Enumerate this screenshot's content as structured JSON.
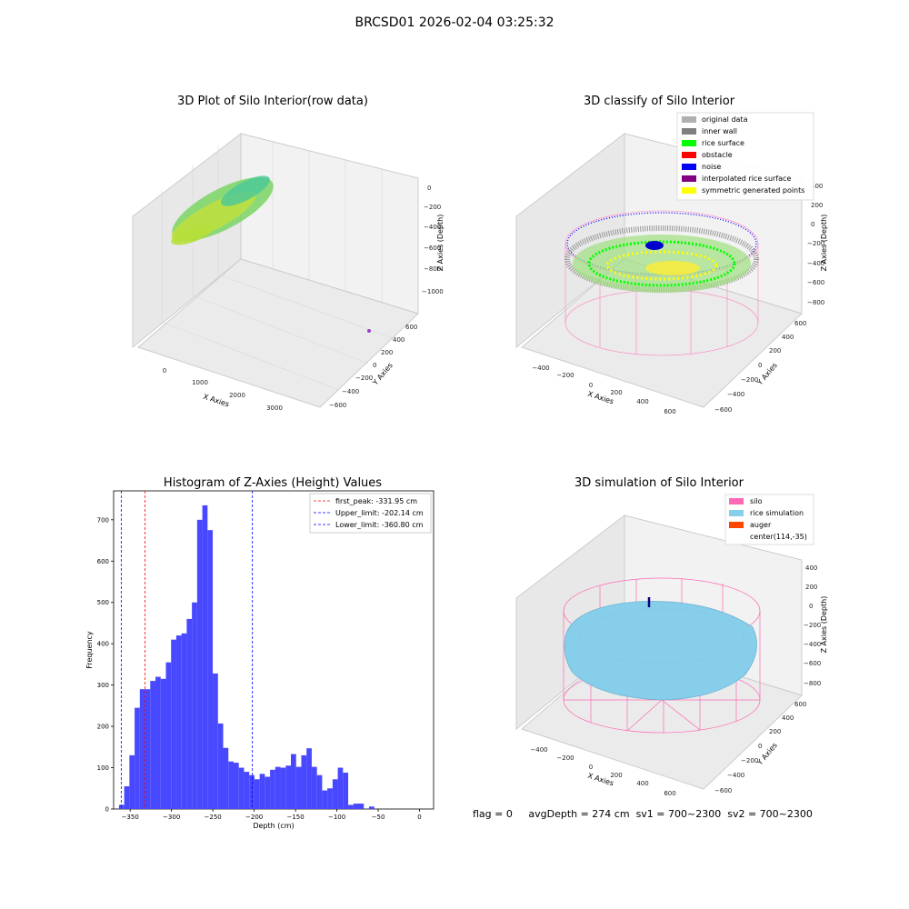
{
  "figure": {
    "suptitle": "BRCSD01 2026-02-04 03:25:32"
  },
  "panels": {
    "p1": {
      "title": "3D Plot of Silo Interior(row data)",
      "xlabel": "X Axies",
      "ylabel": "Y Axies",
      "zlabel": "Z Axies (Depth)",
      "xticks": [
        "0",
        "1000",
        "2000",
        "3000"
      ],
      "yticks": [
        "600",
        "400",
        "200",
        "0",
        "−200",
        "−400",
        "−600"
      ],
      "zticks": [
        "0",
        "−200",
        "−400",
        "−600",
        "−800",
        "−1000"
      ]
    },
    "p2": {
      "title": "3D classify of Silo Interior",
      "xlabel": "X Axies",
      "ylabel": "Y Axies",
      "zlabel": "Z Axies (Depth)",
      "xticks": [
        "−400",
        "−200",
        "0",
        "200",
        "400",
        "600"
      ],
      "yticks": [
        "600",
        "400",
        "200",
        "0",
        "−200",
        "−400",
        "−600"
      ],
      "zticks": [
        "400",
        "200",
        "0",
        "−200",
        "−400",
        "−600",
        "−800"
      ],
      "legend": [
        {
          "label": "original data",
          "color": "#b0b0b0"
        },
        {
          "label": "inner wall",
          "color": "#808080"
        },
        {
          "label": "rice surface",
          "color": "#00ff00"
        },
        {
          "label": "obstacle",
          "color": "#ff0000"
        },
        {
          "label": "noise",
          "color": "#0000ff"
        },
        {
          "label": "interpolated rice surface",
          "color": "#800080"
        },
        {
          "label": "symmetric generated points",
          "color": "#ffff00"
        }
      ]
    },
    "p4": {
      "title": "3D simulation of Silo Interior",
      "xlabel": "X Axies",
      "ylabel": "Y Axies",
      "zlabel": "Z Axies (Depth)",
      "xticks": [
        "−400",
        "−200",
        "0",
        "200",
        "400",
        "600"
      ],
      "yticks": [
        "600",
        "400",
        "200",
        "0",
        "−200",
        "−400",
        "−600"
      ],
      "zticks": [
        "400",
        "200",
        "0",
        "−200",
        "−400",
        "−600",
        "−800"
      ],
      "legend": [
        {
          "label": "silo",
          "color": "#ff69b4"
        },
        {
          "label": "rice simulation",
          "color": "#87ceeb"
        },
        {
          "label": "auger",
          "color": "#ff4500"
        },
        {
          "label": "center(114,-35)",
          "color": ""
        }
      ]
    }
  },
  "chart_data": [
    {
      "type": "bar",
      "title": "Histogram of Z-Axies (Height) Values",
      "xlabel": "Depth (cm)",
      "ylabel": "Frequency",
      "xlim": [
        -370,
        17
      ],
      "ylim": [
        0,
        770
      ],
      "xticks": [
        -350,
        -300,
        -250,
        -200,
        -150,
        -100,
        -50,
        0
      ],
      "xticklabels": [
        "−350",
        "−300",
        "−250",
        "−200",
        "−150",
        "−100",
        "−50",
        "0"
      ],
      "yticks": [
        0,
        100,
        200,
        300,
        400,
        500,
        600,
        700
      ],
      "bar_color": "#4848ff",
      "bins_start": -363.5,
      "bin_width": 6.3,
      "values": [
        10,
        55,
        130,
        245,
        290,
        290,
        310,
        320,
        315,
        355,
        410,
        420,
        425,
        460,
        500,
        700,
        735,
        675,
        328,
        207,
        148,
        115,
        112,
        100,
        90,
        82,
        72,
        85,
        78,
        95,
        102,
        100,
        105,
        133,
        102,
        130,
        147,
        102,
        82,
        45,
        50,
        72,
        100,
        88,
        10,
        13,
        13,
        0,
        6
      ],
      "vlines": [
        {
          "label": "first_peak: -331.95 cm",
          "x": -331.95,
          "color": "#ff0000"
        },
        {
          "label": "Upper_limit: -202.14 cm",
          "x": -202.14,
          "color": "#0000ff"
        },
        {
          "label": "Lower_limit: -360.80 cm",
          "x": -360.8,
          "color": "#0000ff"
        }
      ],
      "legend_position": "top-right"
    }
  ],
  "status": {
    "flag": "flag = 0",
    "avg": "avgDepth = 274 cm",
    "sv1": "sv1 = 700~2300",
    "sv2": "sv2 = 700~2300"
  }
}
